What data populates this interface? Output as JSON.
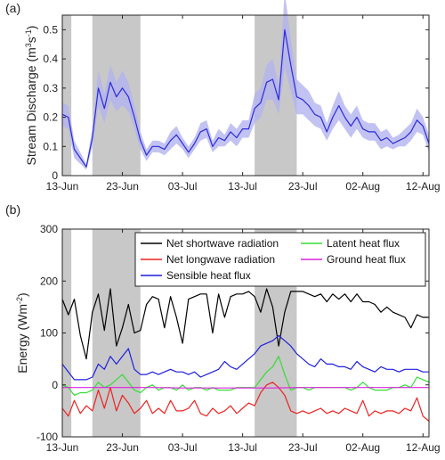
{
  "figure": {
    "colors": {
      "shade": "#c8c8c8",
      "axis": "#262626"
    }
  },
  "chart_data": [
    {
      "type": "line",
      "panel_label": "(a)",
      "ylabel": "Stream Discharge (m³s⁻¹)",
      "ylabel_parts": {
        "main": "Stream Discharge (m",
        "sup1": "3",
        "mid": "s",
        "sup2": "-1",
        "end": ")"
      },
      "xlim": [
        0,
        61
      ],
      "ylim": [
        0,
        0.55
      ],
      "yticks": [
        0,
        0.1,
        0.2,
        0.3,
        0.4,
        0.5
      ],
      "ytick_labels": [
        "0",
        "0.1",
        "0.2",
        "0.3",
        "0.4",
        "0.5"
      ],
      "xticks": [
        0,
        10,
        20,
        30,
        40,
        50,
        60
      ],
      "xtick_labels": [
        "13-Jun",
        "23-Jun",
        "03-Jul",
        "13-Jul",
        "23-Jul",
        "02-Aug",
        "12-Aug"
      ],
      "shaded_periods": [
        [
          0,
          1.5
        ],
        [
          5,
          13
        ],
        [
          32,
          39
        ]
      ],
      "series": [
        {
          "color": "#2b2bd9",
          "band_color": "#b3b3f0",
          "x": [
            0,
            1,
            2,
            3,
            4,
            5,
            6,
            7,
            8,
            9,
            10,
            11,
            12,
            13,
            14,
            15,
            16,
            17,
            18,
            19,
            20,
            21,
            22,
            23,
            24,
            25,
            26,
            27,
            28,
            29,
            30,
            31,
            32,
            33,
            34,
            35,
            36,
            37,
            38,
            39,
            40,
            41,
            42,
            43,
            44,
            45,
            46,
            47,
            48,
            49,
            50,
            51,
            52,
            53,
            54,
            55,
            56,
            57,
            58,
            59,
            60,
            61
          ],
          "values": [
            0.21,
            0.2,
            0.09,
            0.06,
            0.03,
            0.13,
            0.3,
            0.23,
            0.32,
            0.27,
            0.3,
            0.27,
            0.2,
            0.12,
            0.07,
            0.1,
            0.1,
            0.09,
            0.12,
            0.14,
            0.11,
            0.08,
            0.11,
            0.15,
            0.16,
            0.1,
            0.13,
            0.12,
            0.15,
            0.13,
            0.16,
            0.16,
            0.23,
            0.25,
            0.32,
            0.33,
            0.26,
            0.5,
            0.38,
            0.27,
            0.26,
            0.24,
            0.21,
            0.2,
            0.15,
            0.2,
            0.24,
            0.2,
            0.17,
            0.2,
            0.16,
            0.15,
            0.15,
            0.12,
            0.13,
            0.11,
            0.12,
            0.13,
            0.15,
            0.19,
            0.17,
            0.11
          ],
          "band_halfwidth": [
            0.04,
            0.04,
            0.03,
            0.02,
            0.01,
            0.03,
            0.06,
            0.05,
            0.06,
            0.05,
            0.06,
            0.05,
            0.04,
            0.03,
            0.02,
            0.02,
            0.02,
            0.02,
            0.03,
            0.03,
            0.02,
            0.02,
            0.02,
            0.03,
            0.03,
            0.02,
            0.03,
            0.02,
            0.03,
            0.03,
            0.03,
            0.03,
            0.05,
            0.05,
            0.06,
            0.07,
            0.05,
            0.13,
            0.09,
            0.06,
            0.05,
            0.05,
            0.04,
            0.04,
            0.03,
            0.04,
            0.05,
            0.04,
            0.04,
            0.04,
            0.03,
            0.03,
            0.03,
            0.03,
            0.03,
            0.02,
            0.02,
            0.03,
            0.03,
            0.04,
            0.03,
            0.03
          ]
        }
      ]
    },
    {
      "type": "line",
      "panel_label": "(b)",
      "ylabel": "Energy (Wm⁻²)",
      "ylabel_parts": {
        "main": "Energy (Wm",
        "sup1": "-2",
        "end": ")"
      },
      "xlim": [
        0,
        61
      ],
      "ylim": [
        -100,
        300
      ],
      "yticks": [
        -100,
        0,
        100,
        200,
        300
      ],
      "ytick_labels": [
        "-100",
        "0",
        "100",
        "200",
        "300"
      ],
      "xticks": [
        0,
        10,
        20,
        30,
        40,
        50,
        60
      ],
      "xtick_labels": [
        "13-Jun",
        "23-Jun",
        "03-Jul",
        "13-Jul",
        "23-Jul",
        "02-Aug",
        "12-Aug"
      ],
      "shaded_periods": [
        [
          0,
          1.5
        ],
        [
          5,
          13
        ],
        [
          32,
          39
        ]
      ],
      "legend": {
        "placement": "top-right",
        "columns": 2
      },
      "series": [
        {
          "name": "Net shortwave radiation",
          "color": "#000000",
          "x": [
            0,
            1,
            2,
            3,
            4,
            5,
            6,
            7,
            8,
            9,
            10,
            11,
            12,
            13,
            14,
            15,
            16,
            17,
            18,
            19,
            20,
            21,
            22,
            23,
            24,
            25,
            26,
            27,
            28,
            29,
            30,
            31,
            32,
            33,
            34,
            35,
            36,
            37,
            38,
            39,
            40,
            41,
            42,
            43,
            44,
            45,
            46,
            47,
            48,
            49,
            50,
            51,
            52,
            53,
            54,
            55,
            56,
            57,
            58,
            59,
            60,
            61
          ],
          "values": [
            165,
            135,
            165,
            95,
            50,
            140,
            175,
            105,
            185,
            75,
            110,
            155,
            100,
            105,
            155,
            170,
            165,
            110,
            170,
            130,
            80,
            165,
            170,
            175,
            175,
            100,
            175,
            130,
            170,
            175,
            175,
            180,
            170,
            140,
            185,
            150,
            75,
            140,
            180,
            180,
            180,
            175,
            170,
            175,
            160,
            175,
            165,
            175,
            160,
            175,
            160,
            160,
            155,
            140,
            150,
            140,
            135,
            130,
            110,
            135,
            130,
            130
          ]
        },
        {
          "name": "Latent heat flux",
          "color": "#33dd33",
          "x": [
            0,
            1,
            2,
            3,
            4,
            5,
            6,
            7,
            8,
            9,
            10,
            11,
            12,
            13,
            14,
            15,
            16,
            17,
            18,
            19,
            20,
            21,
            22,
            23,
            24,
            25,
            26,
            27,
            28,
            29,
            30,
            31,
            32,
            33,
            34,
            35,
            36,
            37,
            38,
            39,
            40,
            41,
            42,
            43,
            44,
            45,
            46,
            47,
            48,
            49,
            50,
            51,
            52,
            53,
            54,
            55,
            56,
            57,
            58,
            59,
            60,
            61
          ],
          "values": [
            0,
            -5,
            -20,
            -15,
            -15,
            -10,
            5,
            -5,
            0,
            10,
            20,
            5,
            -10,
            -15,
            -5,
            0,
            -10,
            -5,
            -5,
            -10,
            0,
            -10,
            -5,
            -5,
            -10,
            -5,
            -10,
            -10,
            -10,
            -5,
            -5,
            -5,
            -5,
            10,
            25,
            35,
            55,
            20,
            -10,
            -5,
            -5,
            -10,
            -5,
            -5,
            -5,
            -5,
            -5,
            -5,
            -10,
            -5,
            5,
            -5,
            -10,
            -10,
            -10,
            -5,
            -5,
            0,
            -5,
            15,
            10,
            5
          ]
        },
        {
          "name": "Net longwave radiation",
          "color": "#ee2222",
          "x": [
            0,
            1,
            2,
            3,
            4,
            5,
            6,
            7,
            8,
            9,
            10,
            11,
            12,
            13,
            14,
            15,
            16,
            17,
            18,
            19,
            20,
            21,
            22,
            23,
            24,
            25,
            26,
            27,
            28,
            29,
            30,
            31,
            32,
            33,
            34,
            35,
            36,
            37,
            38,
            39,
            40,
            41,
            42,
            43,
            44,
            45,
            46,
            47,
            48,
            49,
            50,
            51,
            52,
            53,
            54,
            55,
            56,
            57,
            58,
            59,
            60,
            61
          ],
          "values": [
            -45,
            -60,
            -30,
            -55,
            -40,
            -50,
            -10,
            -45,
            -5,
            -50,
            -20,
            -35,
            -55,
            -45,
            -30,
            -55,
            -45,
            -55,
            -30,
            -50,
            -50,
            -45,
            -30,
            -55,
            -60,
            -45,
            -55,
            -50,
            -40,
            -55,
            -45,
            -35,
            -40,
            -15,
            0,
            5,
            -5,
            -20,
            -50,
            -55,
            -50,
            -55,
            -50,
            -45,
            -55,
            -50,
            -55,
            -45,
            -50,
            -55,
            -30,
            -60,
            -50,
            -55,
            -50,
            -50,
            -55,
            -45,
            -50,
            -25,
            -60,
            -70
          ]
        },
        {
          "name": "Ground heat flux",
          "color": "#dd22dd",
          "x": [
            0,
            5,
            10,
            15,
            20,
            25,
            30,
            35,
            40,
            45,
            50,
            55,
            61
          ],
          "values": [
            -5,
            -5,
            -5,
            -5,
            -6,
            -6,
            -6,
            -6,
            -5,
            -5,
            -5,
            -5,
            -5
          ]
        },
        {
          "name": "Sensible heat flux",
          "color": "#1f1fdd",
          "x": [
            0,
            1,
            2,
            3,
            4,
            5,
            6,
            7,
            8,
            9,
            10,
            11,
            12,
            13,
            14,
            15,
            16,
            17,
            18,
            19,
            20,
            21,
            22,
            23,
            24,
            25,
            26,
            27,
            28,
            29,
            30,
            31,
            32,
            33,
            34,
            35,
            36,
            37,
            38,
            39,
            40,
            41,
            42,
            43,
            44,
            45,
            46,
            47,
            48,
            49,
            50,
            51,
            52,
            53,
            54,
            55,
            56,
            57,
            58,
            59,
            60,
            61
          ],
          "values": [
            40,
            25,
            10,
            10,
            10,
            15,
            40,
            30,
            55,
            40,
            55,
            70,
            30,
            20,
            20,
            25,
            20,
            25,
            30,
            25,
            25,
            20,
            25,
            15,
            20,
            25,
            30,
            45,
            35,
            30,
            40,
            50,
            60,
            75,
            80,
            85,
            95,
            85,
            75,
            60,
            50,
            40,
            35,
            50,
            40,
            40,
            35,
            35,
            30,
            45,
            35,
            30,
            25,
            35,
            30,
            30,
            25,
            30,
            30,
            30,
            25,
            25
          ]
        }
      ]
    }
  ]
}
